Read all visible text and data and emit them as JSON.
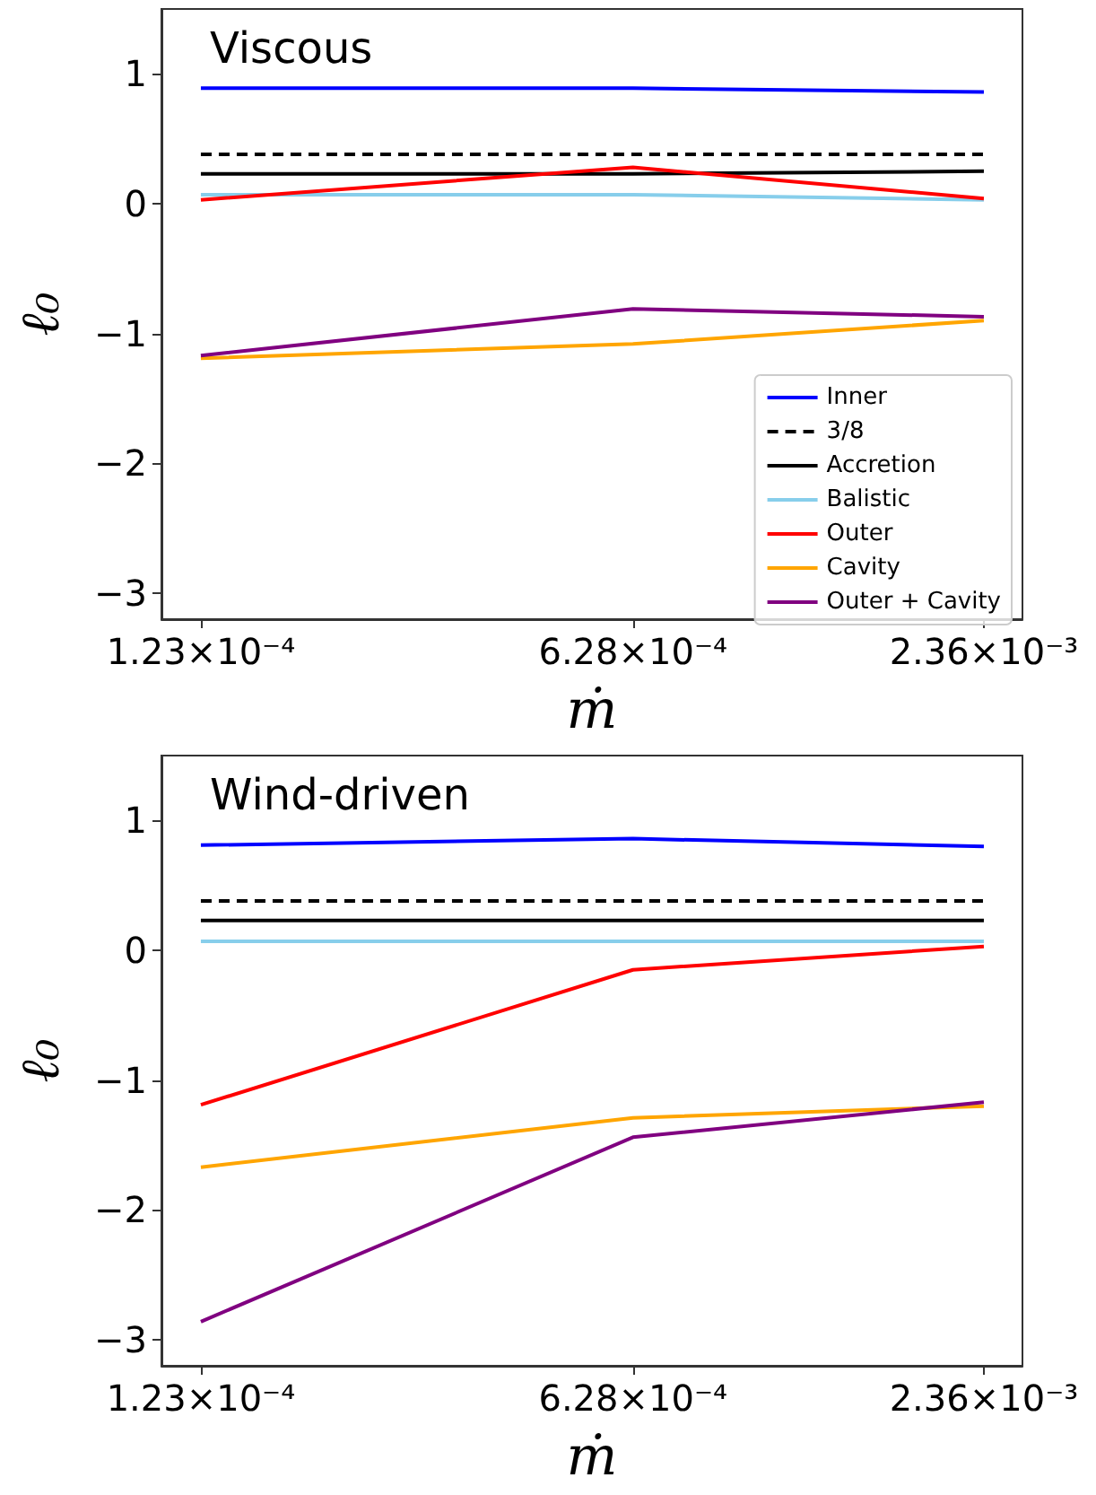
{
  "chart_data": [
    {
      "type": "line",
      "title": "Viscous",
      "xlabel": "ṁ",
      "ylabel": "ℓ₀",
      "log": "x",
      "marker": "none",
      "grid": false,
      "legend": "bottom right",
      "x": [
        0.000123,
        0.000628,
        0.00236
      ],
      "xlim": [
        0.000106,
        0.00273
      ],
      "xticks": [
        {
          "value": 0.000123,
          "label": "1.23×10⁻⁴"
        },
        {
          "value": 0.000628,
          "label": "6.28×10⁻⁴"
        },
        {
          "value": 0.00236,
          "label": "2.36×10⁻³"
        }
      ],
      "ylim": [
        -3.2,
        1.5
      ],
      "yticks": [
        -3,
        -2,
        -1,
        0,
        1
      ],
      "series": [
        {
          "name": "Inner",
          "color": "#0000ff",
          "values": [
            0.89,
            0.89,
            0.86
          ]
        },
        {
          "name": "3/8",
          "color": "#000000",
          "line_style": "dashed",
          "values": [
            0.38,
            0.38,
            0.38
          ]
        },
        {
          "name": "Accretion",
          "color": "#000000",
          "values": [
            0.23,
            0.23,
            0.25
          ]
        },
        {
          "name": "Balistic",
          "color": "#87ceeb",
          "values": [
            0.07,
            0.07,
            0.03
          ]
        },
        {
          "name": "Outer",
          "color": "#ff0000",
          "values": [
            0.03,
            0.28,
            0.04
          ]
        },
        {
          "name": "Cavity",
          "color": "#ffa500",
          "values": [
            -1.19,
            -1.08,
            -0.9
          ]
        },
        {
          "name": "Outer + Cavity",
          "color": "#800080",
          "values": [
            -1.17,
            -0.81,
            -0.87
          ]
        }
      ]
    },
    {
      "type": "line",
      "title": "Wind-driven",
      "xlabel": "ṁ",
      "ylabel": "ℓ₀",
      "log": "x",
      "marker": "none",
      "grid": false,
      "legend": false,
      "x": [
        0.000123,
        0.000628,
        0.00236
      ],
      "xlim": [
        0.000106,
        0.00273
      ],
      "xticks": [
        {
          "value": 0.000123,
          "label": "1.23×10⁻⁴"
        },
        {
          "value": 0.000628,
          "label": "6.28×10⁻⁴"
        },
        {
          "value": 0.00236,
          "label": "2.36×10⁻³"
        }
      ],
      "ylim": [
        -3.2,
        1.5
      ],
      "yticks": [
        -3,
        -2,
        -1,
        0,
        1
      ],
      "series": [
        {
          "color": "#0000ff",
          "values": [
            0.81,
            0.86,
            0.8
          ]
        },
        {
          "color": "#000000",
          "line_style": "dashed",
          "values": [
            0.38,
            0.38,
            0.38
          ]
        },
        {
          "color": "#000000",
          "values": [
            0.23,
            0.23,
            0.23
          ]
        },
        {
          "color": "#87ceeb",
          "values": [
            0.07,
            0.07,
            0.07
          ]
        },
        {
          "color": "#ff0000",
          "values": [
            -1.19,
            -0.15,
            0.03
          ]
        },
        {
          "color": "#ffa500",
          "values": [
            -1.67,
            -1.29,
            -1.2
          ]
        },
        {
          "color": "#800080",
          "values": [
            -2.86,
            -1.44,
            -1.17
          ]
        }
      ]
    }
  ]
}
